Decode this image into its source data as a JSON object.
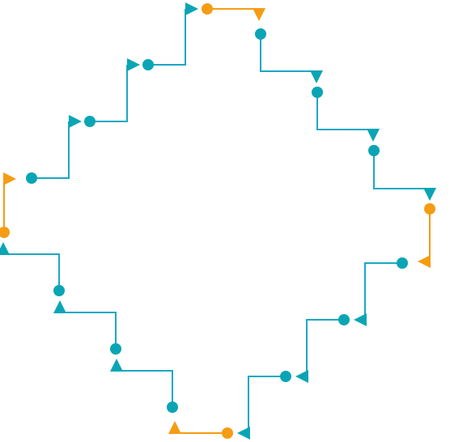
{
  "diagram": {
    "type": "staircase-loop",
    "colors": {
      "segment": "#1aa8c4",
      "marker": "#0aa5b5",
      "accent": "#f59c14"
    },
    "segments": 16,
    "accent_segments": [
      0,
      4,
      8,
      12
    ],
    "marker_shapes": [
      "dot",
      "triangle"
    ]
  }
}
